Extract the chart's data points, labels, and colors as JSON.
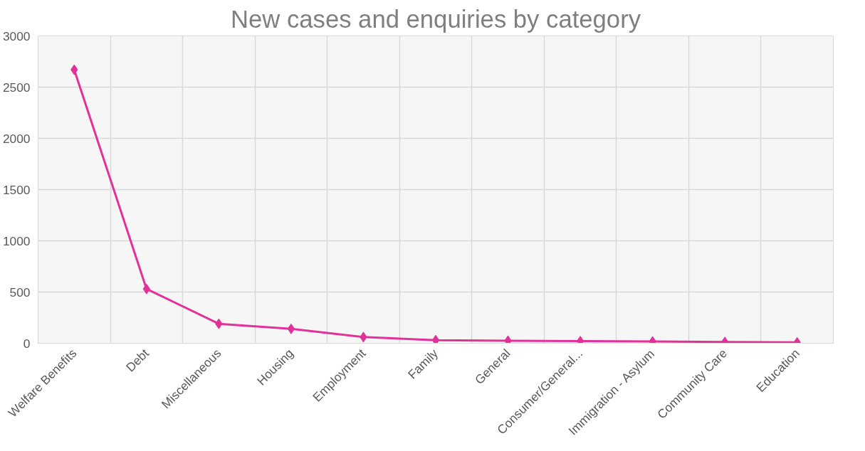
{
  "chart_data": {
    "type": "line",
    "title": "New cases and enquiries by category",
    "categories": [
      "Welfare Benefits",
      "Debt",
      "Miscellaneous",
      "Housing",
      "Employment",
      "Family",
      "General",
      "Consumer/General...",
      "Immigration - Asylum",
      "Community Care",
      "Education"
    ],
    "series": [
      {
        "color": "#e3319a",
        "values": [
          2670,
          530,
          190,
          140,
          60,
          30,
          25,
          20,
          18,
          12,
          8
        ]
      }
    ],
    "ylim": [
      0,
      3000
    ],
    "yticks": [
      0,
      500,
      1000,
      1500,
      2000,
      2500,
      3000
    ],
    "grid": true,
    "marker": "diamond",
    "line_style": "solid"
  }
}
